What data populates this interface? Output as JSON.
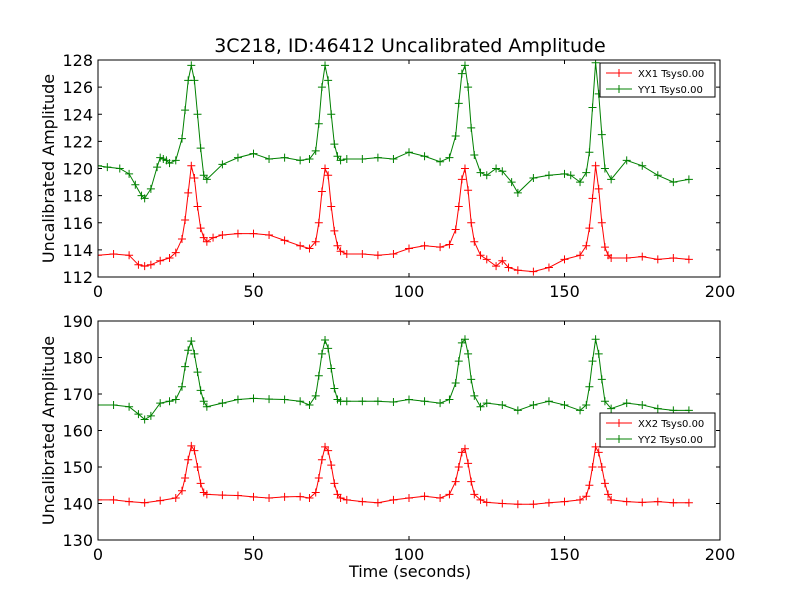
{
  "figure": {
    "title": "3C218, ID:46412 Uncalibrated Amplitude",
    "xlabel": "Time (seconds)"
  },
  "chart_data": [
    {
      "type": "line",
      "title": "3C218, ID:46412 Uncalibrated Amplitude",
      "xlabel": "",
      "ylabel": "Uncalibrated Amplitude",
      "xlim": [
        0,
        200
      ],
      "ylim": [
        112,
        128
      ],
      "xticks": [
        0,
        50,
        100,
        150,
        200
      ],
      "yticks": [
        112,
        114,
        116,
        118,
        120,
        122,
        124,
        126,
        128
      ],
      "grid": false,
      "legend_position": "top-right",
      "series": [
        {
          "name": "XX1 Tsys0.00",
          "color": "#ff0000",
          "marker": "+",
          "x": [
            0,
            5,
            10,
            13,
            15,
            17,
            20,
            23,
            25,
            27,
            28,
            29,
            30,
            31,
            32,
            33,
            34,
            35,
            37,
            40,
            45,
            50,
            55,
            60,
            65,
            68,
            70,
            71,
            72,
            73,
            74,
            75,
            76,
            77,
            78,
            80,
            85,
            90,
            95,
            100,
            105,
            110,
            113,
            115,
            116,
            117,
            118,
            119,
            120,
            121,
            123,
            125,
            128,
            130,
            132,
            135,
            140,
            145,
            150,
            155,
            157,
            158,
            159,
            160,
            161,
            162,
            163,
            164,
            165,
            170,
            175,
            180,
            185,
            190
          ],
          "values": [
            113.6,
            113.7,
            113.6,
            112.9,
            112.8,
            112.9,
            113.2,
            113.4,
            113.8,
            114.8,
            116.2,
            118.2,
            120.2,
            119.3,
            117.2,
            115.6,
            114.9,
            114.6,
            114.9,
            115.1,
            115.2,
            115.2,
            115.1,
            114.7,
            114.3,
            114.1,
            114.6,
            116.0,
            118.3,
            120.0,
            119.5,
            117.2,
            115.4,
            114.3,
            113.9,
            113.7,
            113.7,
            113.6,
            113.7,
            114.1,
            114.3,
            114.2,
            114.4,
            115.5,
            117.2,
            119.2,
            120.0,
            118.4,
            116.0,
            114.6,
            113.6,
            113.3,
            112.8,
            113.2,
            112.7,
            112.5,
            112.4,
            112.7,
            113.3,
            113.6,
            114.3,
            115.6,
            117.8,
            120.2,
            118.5,
            116.0,
            114.2,
            113.6,
            113.4,
            113.4,
            113.5,
            113.3,
            113.4,
            113.3
          ]
        },
        {
          "name": "YY1 Tsys0.00",
          "color": "#008000",
          "marker": "+",
          "x": [
            0,
            3,
            7,
            10,
            12,
            14,
            15,
            17,
            19,
            20,
            21,
            22,
            23,
            25,
            27,
            28,
            29,
            30,
            31,
            32,
            33,
            34,
            35,
            40,
            45,
            50,
            55,
            60,
            65,
            68,
            70,
            71,
            72,
            73,
            74,
            75,
            76,
            77,
            78,
            80,
            85,
            90,
            95,
            100,
            105,
            110,
            113,
            115,
            116,
            117,
            118,
            119,
            120,
            121,
            123,
            125,
            128,
            130,
            133,
            135,
            140,
            145,
            150,
            152,
            155,
            157,
            158,
            159,
            160,
            161,
            162,
            163,
            165,
            170,
            175,
            180,
            185,
            190
          ],
          "values": [
            120.2,
            120.1,
            120.0,
            119.6,
            118.8,
            118.0,
            117.8,
            118.5,
            120.1,
            120.8,
            120.7,
            120.6,
            120.4,
            120.6,
            122.2,
            124.3,
            126.5,
            127.6,
            126.5,
            124.0,
            121.5,
            119.5,
            119.2,
            120.3,
            120.8,
            121.1,
            120.7,
            120.8,
            120.6,
            120.7,
            121.3,
            123.3,
            126.0,
            127.6,
            126.5,
            124.0,
            121.8,
            120.9,
            120.6,
            120.7,
            120.7,
            120.8,
            120.7,
            121.2,
            120.9,
            120.5,
            120.8,
            122.4,
            124.8,
            127.0,
            127.6,
            126.0,
            123.0,
            121.0,
            119.7,
            119.5,
            120.0,
            119.8,
            119.0,
            118.2,
            119.3,
            119.5,
            119.6,
            119.5,
            119.0,
            119.7,
            121.2,
            124.5,
            127.8,
            125.5,
            122.5,
            120.0,
            119.2,
            120.6,
            120.2,
            119.5,
            119.0,
            119.2
          ]
        }
      ]
    },
    {
      "type": "line",
      "title": "",
      "xlabel": "Time (seconds)",
      "ylabel": "Uncalibrated Amplitude",
      "xlim": [
        0,
        200
      ],
      "ylim": [
        130,
        190
      ],
      "xticks": [
        0,
        50,
        100,
        150,
        200
      ],
      "yticks": [
        130,
        140,
        150,
        160,
        170,
        180,
        190
      ],
      "grid": false,
      "legend_position": "center-right",
      "series": [
        {
          "name": "XX2 Tsys0.00",
          "color": "#ff0000",
          "marker": "+",
          "x": [
            0,
            5,
            10,
            15,
            20,
            25,
            27,
            28,
            29,
            30,
            31,
            32,
            33,
            34,
            35,
            40,
            45,
            50,
            55,
            60,
            65,
            68,
            70,
            71,
            72,
            73,
            74,
            75,
            76,
            77,
            78,
            80,
            85,
            90,
            95,
            100,
            105,
            110,
            113,
            115,
            116,
            117,
            118,
            119,
            120,
            121,
            123,
            125,
            130,
            135,
            140,
            145,
            150,
            155,
            157,
            158,
            159,
            160,
            161,
            162,
            163,
            164,
            165,
            170,
            175,
            180,
            185,
            190
          ],
          "values": [
            141.0,
            141.0,
            140.5,
            140.2,
            140.8,
            141.5,
            143.5,
            147.0,
            152.0,
            155.8,
            154.5,
            150.0,
            145.5,
            143.0,
            142.5,
            142.3,
            142.2,
            141.8,
            141.5,
            141.8,
            141.9,
            141.5,
            143.0,
            147.0,
            152.0,
            155.5,
            154.5,
            150.5,
            145.5,
            142.5,
            141.5,
            141.0,
            140.5,
            140.2,
            141.0,
            141.5,
            142.0,
            141.5,
            142.5,
            146.0,
            150.0,
            154.0,
            155.0,
            151.0,
            146.0,
            142.5,
            141.0,
            140.3,
            140.0,
            139.8,
            139.8,
            140.2,
            140.5,
            141.0,
            142.0,
            145.0,
            150.0,
            155.5,
            154.0,
            150.0,
            145.5,
            142.5,
            141.0,
            140.5,
            140.3,
            140.5,
            140.2,
            140.2
          ]
        },
        {
          "name": "YY2 Tsys0.00",
          "color": "#008000",
          "marker": "+",
          "x": [
            0,
            5,
            10,
            13,
            15,
            17,
            20,
            23,
            25,
            27,
            28,
            29,
            30,
            31,
            32,
            33,
            34,
            35,
            40,
            45,
            50,
            55,
            60,
            65,
            68,
            70,
            71,
            72,
            73,
            74,
            75,
            76,
            77,
            78,
            80,
            85,
            90,
            95,
            100,
            105,
            110,
            113,
            115,
            116,
            117,
            118,
            119,
            120,
            121,
            123,
            125,
            130,
            135,
            140,
            145,
            150,
            155,
            157,
            158,
            159,
            160,
            161,
            162,
            163,
            165,
            170,
            175,
            180,
            185,
            190
          ],
          "values": [
            167.0,
            167.0,
            166.5,
            164.5,
            163.0,
            164.0,
            167.5,
            168.0,
            168.5,
            172.0,
            177.5,
            182.0,
            184.5,
            181.0,
            176.0,
            171.0,
            168.0,
            166.5,
            167.5,
            168.5,
            168.8,
            168.6,
            168.5,
            168.0,
            167.0,
            169.5,
            175.0,
            181.0,
            184.8,
            182.5,
            177.0,
            171.5,
            168.5,
            168.0,
            168.0,
            168.0,
            168.0,
            167.8,
            168.5,
            168.0,
            167.5,
            168.5,
            173.0,
            179.0,
            184.0,
            185.0,
            181.0,
            174.0,
            169.5,
            166.5,
            167.5,
            167.0,
            165.5,
            167.0,
            168.0,
            167.0,
            165.5,
            167.0,
            172.0,
            179.0,
            185.0,
            181.0,
            174.0,
            168.0,
            166.0,
            167.5,
            167.0,
            166.0,
            165.5,
            165.5
          ]
        }
      ]
    }
  ]
}
